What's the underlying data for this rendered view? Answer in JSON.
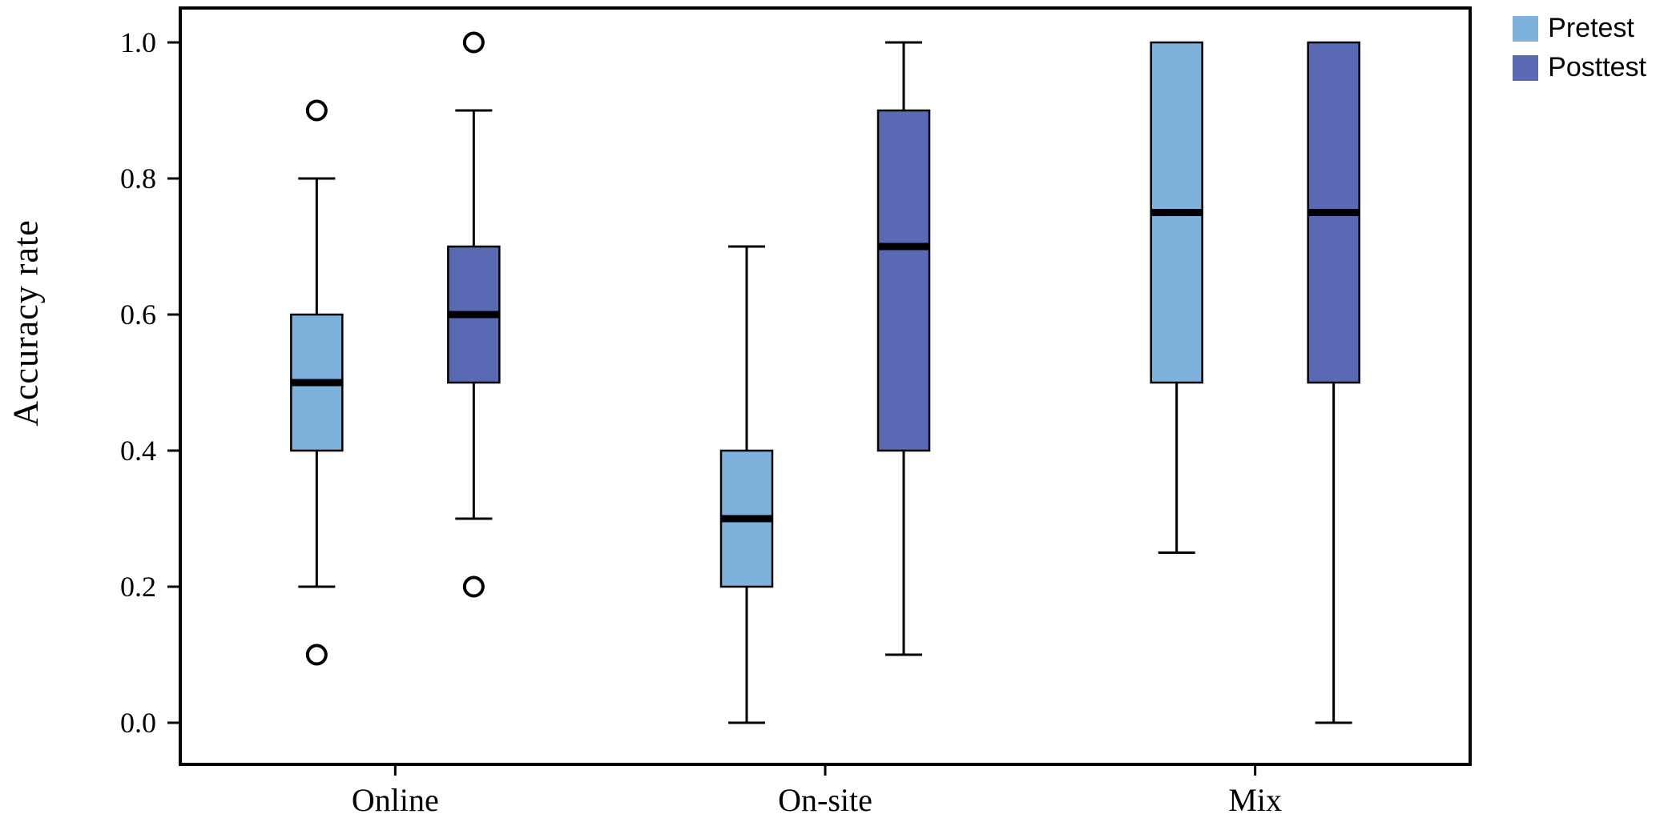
{
  "chart_data": {
    "type": "boxplot",
    "title": "",
    "xlabel": "",
    "ylabel": "Accuracy rate",
    "ylim": [
      0.0,
      1.0
    ],
    "yticks": [
      0.0,
      0.2,
      0.4,
      0.6,
      0.8,
      1.0
    ],
    "categories": [
      "Online",
      "On-site",
      "Mix"
    ],
    "legend_position": "top-right",
    "grid": false,
    "series": [
      {
        "name": "Pretest",
        "color": "#7EB2DD",
        "boxes": [
          {
            "category": "Online",
            "whisker_low": 0.2,
            "q1": 0.4,
            "median": 0.5,
            "q3": 0.6,
            "whisker_high": 0.8,
            "outliers": [
              0.9,
              0.1
            ]
          },
          {
            "category": "On-site",
            "whisker_low": 0.0,
            "q1": 0.2,
            "median": 0.3,
            "q3": 0.4,
            "whisker_high": 0.7,
            "outliers": []
          },
          {
            "category": "Mix",
            "whisker_low": 0.25,
            "q1": 0.5,
            "median": 0.75,
            "q3": 1.0,
            "whisker_high": 1.0,
            "outliers": []
          }
        ]
      },
      {
        "name": "Posttest",
        "color": "#5A69B4",
        "boxes": [
          {
            "category": "Online",
            "whisker_low": 0.3,
            "q1": 0.5,
            "median": 0.6,
            "q3": 0.7,
            "whisker_high": 0.9,
            "outliers": [
              1.0,
              0.2
            ]
          },
          {
            "category": "On-site",
            "whisker_low": 0.1,
            "q1": 0.4,
            "median": 0.7,
            "q3": 0.9,
            "whisker_high": 1.0,
            "outliers": []
          },
          {
            "category": "Mix",
            "whisker_low": 0.0,
            "q1": 0.5,
            "median": 0.75,
            "q3": 1.0,
            "whisker_high": 1.0,
            "outliers": []
          }
        ]
      }
    ]
  }
}
